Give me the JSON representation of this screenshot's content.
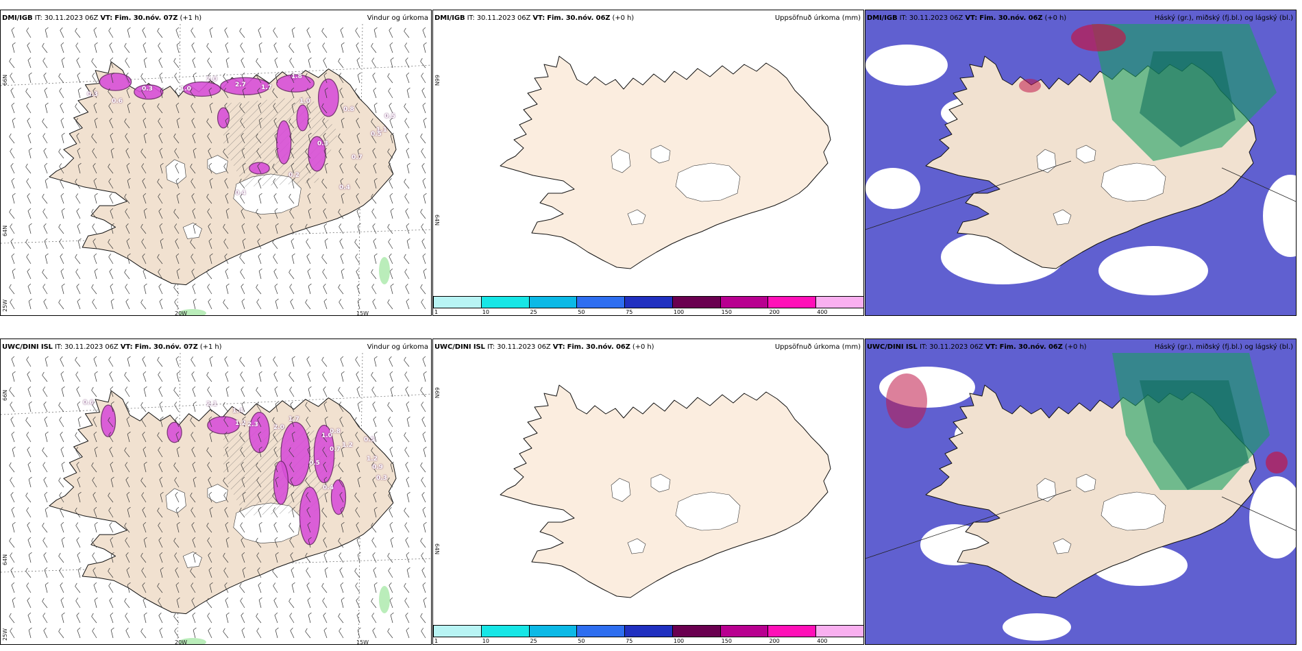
{
  "rows": [
    {
      "model": "DMI/IGB",
      "wind": {
        "it_label": "IT:",
        "it": "30.11.2023 06Z",
        "vt_label": "VT:",
        "vt": "Fim. 30.nóv. 07Z",
        "lead": "(+1 h)",
        "param": "Vindur og úrkoma"
      },
      "accum": {
        "it_label": "IT:",
        "it": "30.11.2023 06Z",
        "vt_label": "VT:",
        "vt": "Fim. 30.nóv. 06Z",
        "lead": "(+0 h)",
        "param": "Uppsöfnuð úrkoma (mm)"
      },
      "cloud": {
        "it_label": "IT:",
        "it": "30.11.2023 06Z",
        "vt_label": "VT:",
        "vt": "Fim. 30.nóv. 06Z",
        "lead": "(+0 h)",
        "param": "Háský (gr.), miðský (fj.bl.) og lágský (bl.)"
      },
      "values": [
        "0.3",
        "0.6",
        "0.3",
        "1.0",
        "2.0",
        "2.7",
        "1.7",
        "1.8",
        "1.0",
        "0.8",
        "0.5",
        "1.1",
        "0.4",
        "0.2",
        "0.7",
        "0.5",
        "0.3",
        "0.4"
      ]
    },
    {
      "model": "UWC/DINI ISL",
      "wind": {
        "it_label": "IT:",
        "it": "30.11.2023 06Z",
        "vt_label": "VT:",
        "vt": "Fim. 30.nóv. 07Z",
        "lead": "(+1 h)",
        "param": "Vindur og úrkoma"
      },
      "accum": {
        "it_label": "IT:",
        "it": "30.11.2023 06Z",
        "vt_label": "VT:",
        "vt": "Fim. 30.nóv. 06Z",
        "lead": "(+0 h)",
        "param": "Uppsöfnuð úrkoma (mm)"
      },
      "cloud": {
        "it_label": "IT:",
        "it": "30.11.2023 06Z",
        "vt_label": "VT:",
        "vt": "Fim. 30.nóv. 06Z",
        "lead": "(+0 h)",
        "param": "Háský (gr.), miðský (fj.bl.) og lágský (bl.)"
      },
      "values": [
        "0.6",
        "2.1",
        "1.4",
        "2.3",
        "1.2",
        "2.0",
        "1.7",
        "1.0",
        "0.7",
        "1.2",
        "0.5",
        "1.2",
        "0.9",
        "0.8",
        "0.5",
        "0.4",
        "0.3"
      ]
    }
  ],
  "grid_labels": {
    "lat66": "66N",
    "lat64": "64N",
    "lon20": "20W",
    "lon15": "15W",
    "lon25": "25W"
  },
  "colorbar": {
    "ticks": [
      "1",
      "10",
      "25",
      "50",
      "75",
      "100",
      "150",
      "200",
      "400"
    ],
    "colors": [
      "#b8f4f4",
      "#17e6e6",
      "#0cb9e6",
      "#2e6ef0",
      "#2030c0",
      "#6a0050",
      "#b80090",
      "#ff10b8",
      "#f9b0f0"
    ]
  },
  "colors": {
    "land": "#f1e1d0",
    "land_plain": "#fbeddf",
    "precip": "#d850d8",
    "precip_dark": "#6a2868",
    "cloud_low": "#4444c8",
    "cloud_mid": "#1aa060",
    "cloud_high": "#c01848"
  }
}
